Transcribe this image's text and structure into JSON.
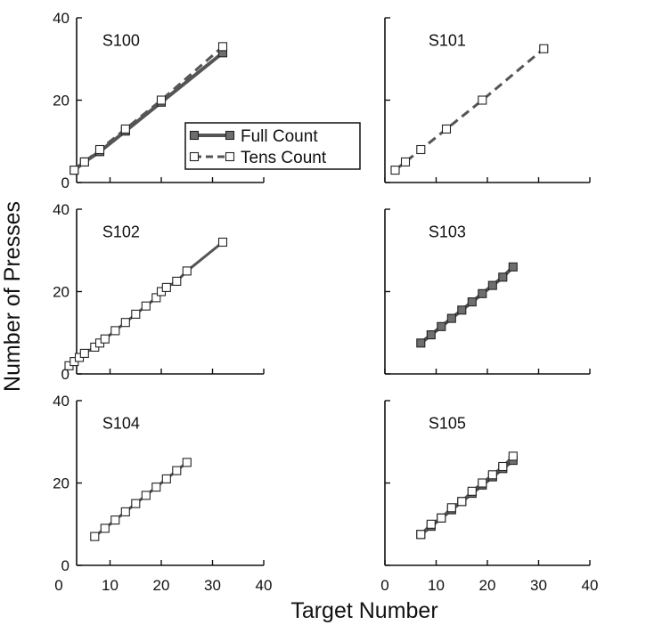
{
  "figure": {
    "ylabel": "Number of Presses",
    "xlabel": "Target Number",
    "x_ticks": [
      "0",
      "10",
      "20",
      "30",
      "40"
    ],
    "y_ticks": [
      "0",
      "20",
      "40"
    ]
  },
  "legend": {
    "full": "Full Count",
    "tens": "Tens Count"
  },
  "colors": {
    "full": "#555555",
    "tens": "#555555",
    "marker_full": "#6e6e6e",
    "marker_tens": "#ffffff"
  },
  "chart_data": [
    {
      "type": "line",
      "title": "S100",
      "xlim": [
        0,
        40
      ],
      "ylim": [
        0,
        40
      ],
      "series": [
        {
          "name": "Full Count",
          "style": "solid",
          "marker": "filled-square",
          "x": [
            3,
            5,
            8,
            13,
            20,
            32
          ],
          "y": [
            3,
            5,
            7.5,
            12.5,
            19.5,
            31.5
          ]
        },
        {
          "name": "Tens Count",
          "style": "dashed",
          "marker": "open-square",
          "x": [
            3,
            5,
            8,
            13,
            20,
            32
          ],
          "y": [
            3,
            5,
            8,
            13,
            20,
            33
          ]
        }
      ]
    },
    {
      "type": "line",
      "title": "S101",
      "xlim": [
        0,
        40
      ],
      "ylim": [
        0,
        40
      ],
      "series": [
        {
          "name": "Tens Count",
          "style": "dashed",
          "marker": "open-square",
          "x": [
            2,
            4,
            7,
            12,
            19,
            31
          ],
          "y": [
            3,
            5,
            8,
            13,
            20,
            32.5
          ]
        }
      ]
    },
    {
      "type": "line",
      "title": "S102",
      "xlim": [
        0,
        40
      ],
      "ylim": [
        0,
        40
      ],
      "series": [
        {
          "name": "Tens Count",
          "style": "solid",
          "marker": "open-square",
          "x": [
            2,
            3,
            4,
            5,
            7,
            8,
            9,
            11,
            13,
            15,
            17,
            19,
            20,
            21,
            23,
            25,
            32
          ],
          "y": [
            2,
            3,
            4,
            5,
            6.5,
            7.5,
            8.5,
            10.5,
            12.5,
            14.5,
            16.5,
            18.5,
            20,
            21,
            22.5,
            25,
            32
          ]
        }
      ]
    },
    {
      "type": "line",
      "title": "S103",
      "xlim": [
        0,
        40
      ],
      "ylim": [
        0,
        40
      ],
      "series": [
        {
          "name": "Full Count",
          "style": "solid",
          "marker": "filled-square",
          "x": [
            7,
            9,
            11,
            13,
            15,
            17,
            19,
            21,
            23,
            25
          ],
          "y": [
            7.5,
            9.5,
            11.5,
            13.5,
            15.5,
            17.5,
            19.5,
            21.5,
            23.5,
            26
          ]
        }
      ]
    },
    {
      "type": "line",
      "title": "S104",
      "xlim": [
        0,
        40
      ],
      "ylim": [
        0,
        40
      ],
      "series": [
        {
          "name": "Tens Count",
          "style": "solid",
          "marker": "open-square",
          "x": [
            7,
            9,
            11,
            13,
            15,
            17,
            19,
            21,
            23,
            25
          ],
          "y": [
            7,
            9,
            11,
            13,
            15,
            17,
            19,
            21,
            23,
            25
          ]
        }
      ]
    },
    {
      "type": "line",
      "title": "S105",
      "xlim": [
        0,
        40
      ],
      "ylim": [
        0,
        40
      ],
      "series": [
        {
          "name": "Full Count",
          "style": "solid",
          "marker": "filled-square",
          "x": [
            7,
            9,
            11,
            13,
            15,
            17,
            19,
            21,
            23,
            25
          ],
          "y": [
            7.5,
            9.5,
            11.5,
            13.5,
            15.5,
            17.5,
            19.5,
            21.5,
            23.5,
            25.5
          ]
        },
        {
          "name": "Tens Count",
          "style": "solid",
          "marker": "open-square",
          "x": [
            7,
            9,
            11,
            13,
            15,
            17,
            19,
            21,
            23,
            25
          ],
          "y": [
            7.5,
            10,
            11.5,
            14,
            15.5,
            18,
            20,
            22,
            24,
            26.5
          ]
        }
      ]
    }
  ]
}
